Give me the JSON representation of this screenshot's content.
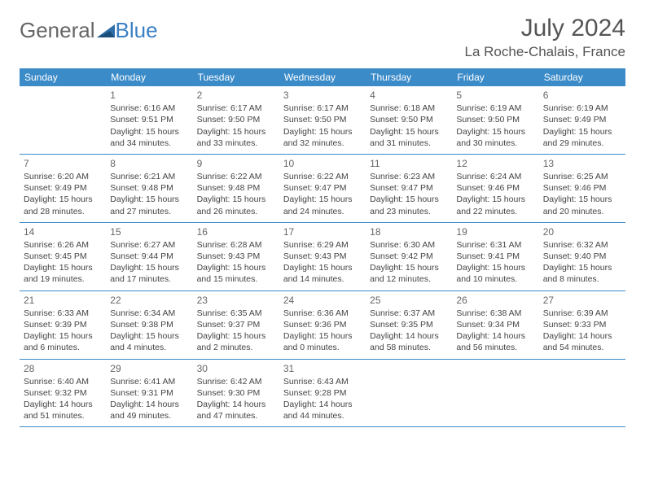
{
  "brand": {
    "part1": "General",
    "part2": "Blue"
  },
  "title": "July 2024",
  "location": "La Roche-Chalais, France",
  "colors": {
    "header_bg": "#3b8bc9",
    "header_text": "#ffffff",
    "rule": "#3b8bc9",
    "body_text": "#444444",
    "title_text": "#555555"
  },
  "weekdays": [
    "Sunday",
    "Monday",
    "Tuesday",
    "Wednesday",
    "Thursday",
    "Friday",
    "Saturday"
  ],
  "weeks": [
    [
      {
        "n": "",
        "sunrise": "",
        "sunset": "",
        "daylight": ""
      },
      {
        "n": "1",
        "sunrise": "Sunrise: 6:16 AM",
        "sunset": "Sunset: 9:51 PM",
        "daylight": "Daylight: 15 hours and 34 minutes."
      },
      {
        "n": "2",
        "sunrise": "Sunrise: 6:17 AM",
        "sunset": "Sunset: 9:50 PM",
        "daylight": "Daylight: 15 hours and 33 minutes."
      },
      {
        "n": "3",
        "sunrise": "Sunrise: 6:17 AM",
        "sunset": "Sunset: 9:50 PM",
        "daylight": "Daylight: 15 hours and 32 minutes."
      },
      {
        "n": "4",
        "sunrise": "Sunrise: 6:18 AM",
        "sunset": "Sunset: 9:50 PM",
        "daylight": "Daylight: 15 hours and 31 minutes."
      },
      {
        "n": "5",
        "sunrise": "Sunrise: 6:19 AM",
        "sunset": "Sunset: 9:50 PM",
        "daylight": "Daylight: 15 hours and 30 minutes."
      },
      {
        "n": "6",
        "sunrise": "Sunrise: 6:19 AM",
        "sunset": "Sunset: 9:49 PM",
        "daylight": "Daylight: 15 hours and 29 minutes."
      }
    ],
    [
      {
        "n": "7",
        "sunrise": "Sunrise: 6:20 AM",
        "sunset": "Sunset: 9:49 PM",
        "daylight": "Daylight: 15 hours and 28 minutes."
      },
      {
        "n": "8",
        "sunrise": "Sunrise: 6:21 AM",
        "sunset": "Sunset: 9:48 PM",
        "daylight": "Daylight: 15 hours and 27 minutes."
      },
      {
        "n": "9",
        "sunrise": "Sunrise: 6:22 AM",
        "sunset": "Sunset: 9:48 PM",
        "daylight": "Daylight: 15 hours and 26 minutes."
      },
      {
        "n": "10",
        "sunrise": "Sunrise: 6:22 AM",
        "sunset": "Sunset: 9:47 PM",
        "daylight": "Daylight: 15 hours and 24 minutes."
      },
      {
        "n": "11",
        "sunrise": "Sunrise: 6:23 AM",
        "sunset": "Sunset: 9:47 PM",
        "daylight": "Daylight: 15 hours and 23 minutes."
      },
      {
        "n": "12",
        "sunrise": "Sunrise: 6:24 AM",
        "sunset": "Sunset: 9:46 PM",
        "daylight": "Daylight: 15 hours and 22 minutes."
      },
      {
        "n": "13",
        "sunrise": "Sunrise: 6:25 AM",
        "sunset": "Sunset: 9:46 PM",
        "daylight": "Daylight: 15 hours and 20 minutes."
      }
    ],
    [
      {
        "n": "14",
        "sunrise": "Sunrise: 6:26 AM",
        "sunset": "Sunset: 9:45 PM",
        "daylight": "Daylight: 15 hours and 19 minutes."
      },
      {
        "n": "15",
        "sunrise": "Sunrise: 6:27 AM",
        "sunset": "Sunset: 9:44 PM",
        "daylight": "Daylight: 15 hours and 17 minutes."
      },
      {
        "n": "16",
        "sunrise": "Sunrise: 6:28 AM",
        "sunset": "Sunset: 9:43 PM",
        "daylight": "Daylight: 15 hours and 15 minutes."
      },
      {
        "n": "17",
        "sunrise": "Sunrise: 6:29 AM",
        "sunset": "Sunset: 9:43 PM",
        "daylight": "Daylight: 15 hours and 14 minutes."
      },
      {
        "n": "18",
        "sunrise": "Sunrise: 6:30 AM",
        "sunset": "Sunset: 9:42 PM",
        "daylight": "Daylight: 15 hours and 12 minutes."
      },
      {
        "n": "19",
        "sunrise": "Sunrise: 6:31 AM",
        "sunset": "Sunset: 9:41 PM",
        "daylight": "Daylight: 15 hours and 10 minutes."
      },
      {
        "n": "20",
        "sunrise": "Sunrise: 6:32 AM",
        "sunset": "Sunset: 9:40 PM",
        "daylight": "Daylight: 15 hours and 8 minutes."
      }
    ],
    [
      {
        "n": "21",
        "sunrise": "Sunrise: 6:33 AM",
        "sunset": "Sunset: 9:39 PM",
        "daylight": "Daylight: 15 hours and 6 minutes."
      },
      {
        "n": "22",
        "sunrise": "Sunrise: 6:34 AM",
        "sunset": "Sunset: 9:38 PM",
        "daylight": "Daylight: 15 hours and 4 minutes."
      },
      {
        "n": "23",
        "sunrise": "Sunrise: 6:35 AM",
        "sunset": "Sunset: 9:37 PM",
        "daylight": "Daylight: 15 hours and 2 minutes."
      },
      {
        "n": "24",
        "sunrise": "Sunrise: 6:36 AM",
        "sunset": "Sunset: 9:36 PM",
        "daylight": "Daylight: 15 hours and 0 minutes."
      },
      {
        "n": "25",
        "sunrise": "Sunrise: 6:37 AM",
        "sunset": "Sunset: 9:35 PM",
        "daylight": "Daylight: 14 hours and 58 minutes."
      },
      {
        "n": "26",
        "sunrise": "Sunrise: 6:38 AM",
        "sunset": "Sunset: 9:34 PM",
        "daylight": "Daylight: 14 hours and 56 minutes."
      },
      {
        "n": "27",
        "sunrise": "Sunrise: 6:39 AM",
        "sunset": "Sunset: 9:33 PM",
        "daylight": "Daylight: 14 hours and 54 minutes."
      }
    ],
    [
      {
        "n": "28",
        "sunrise": "Sunrise: 6:40 AM",
        "sunset": "Sunset: 9:32 PM",
        "daylight": "Daylight: 14 hours and 51 minutes."
      },
      {
        "n": "29",
        "sunrise": "Sunrise: 6:41 AM",
        "sunset": "Sunset: 9:31 PM",
        "daylight": "Daylight: 14 hours and 49 minutes."
      },
      {
        "n": "30",
        "sunrise": "Sunrise: 6:42 AM",
        "sunset": "Sunset: 9:30 PM",
        "daylight": "Daylight: 14 hours and 47 minutes."
      },
      {
        "n": "31",
        "sunrise": "Sunrise: 6:43 AM",
        "sunset": "Sunset: 9:28 PM",
        "daylight": "Daylight: 14 hours and 44 minutes."
      },
      {
        "n": "",
        "sunrise": "",
        "sunset": "",
        "daylight": ""
      },
      {
        "n": "",
        "sunrise": "",
        "sunset": "",
        "daylight": ""
      },
      {
        "n": "",
        "sunrise": "",
        "sunset": "",
        "daylight": ""
      }
    ]
  ]
}
